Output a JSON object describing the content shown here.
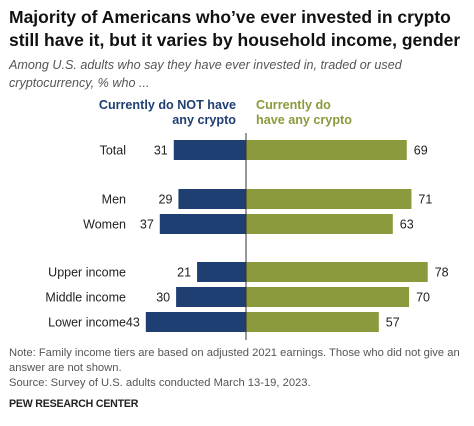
{
  "title": "Majority of Americans who’ve ever invested in crypto still have it, but it varies by household income, gender",
  "subtitle": "Among U.S. adults who say they have ever invested in, traded or used cryptocurrency, % who ...",
  "notes": {
    "note": "Note: Family income tiers are based on adjusted 2021 earnings. Those who did not give an answer are not shown.",
    "source": "Source: Survey of U.S. adults conducted March 13-19, 2023."
  },
  "brand": "PEW RESEARCH CENTER",
  "colors": {
    "not_have": "#1f3f72",
    "have": "#8b9a3c",
    "axis": "#333333",
    "text": "#222222"
  },
  "chart_data": {
    "type": "bar",
    "orientation": "horizontal-diverging",
    "categories": [
      "Total",
      "Men",
      "Women",
      "Upper income",
      "Middle income",
      "Lower income"
    ],
    "series": [
      {
        "name": "Currently do NOT have any crypto",
        "values": [
          31,
          29,
          37,
          21,
          30,
          43
        ]
      },
      {
        "name": "Currently do have any crypto",
        "values": [
          69,
          71,
          63,
          78,
          70,
          57
        ]
      }
    ],
    "legend_position": "top",
    "grid": false
  }
}
